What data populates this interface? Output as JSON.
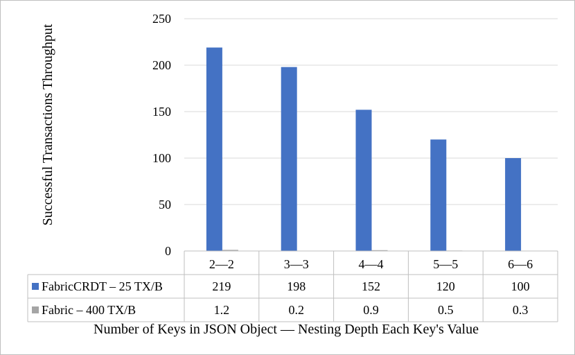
{
  "chart_data": {
    "type": "bar",
    "xlabel": "Number of Keys in JSON Object — Nesting Depth Each Key's Value",
    "ylabel": "Successful Transactions Throughput",
    "ylim": [
      0,
      250
    ],
    "yticks": [
      "0",
      "50",
      "100",
      "150",
      "200",
      "250"
    ],
    "categories": [
      "2—2",
      "3—3",
      "4—4",
      "5—5",
      "6—6"
    ],
    "series": [
      {
        "name": "FabricCRDT – 25 TX/B",
        "color": "#4472c4",
        "values": [
          219,
          198,
          152,
          120,
          100
        ],
        "labels": [
          "219",
          "198",
          "152",
          "120",
          "100"
        ]
      },
      {
        "name": "Fabric – 400 TX/B",
        "color": "#a5a5a5",
        "values": [
          1.2,
          0.2,
          0.9,
          0.5,
          0.3
        ],
        "labels": [
          "1.2",
          "0.2",
          "0.9",
          "0.5",
          "0.3"
        ]
      }
    ],
    "grid": true,
    "legend": "data-table"
  }
}
